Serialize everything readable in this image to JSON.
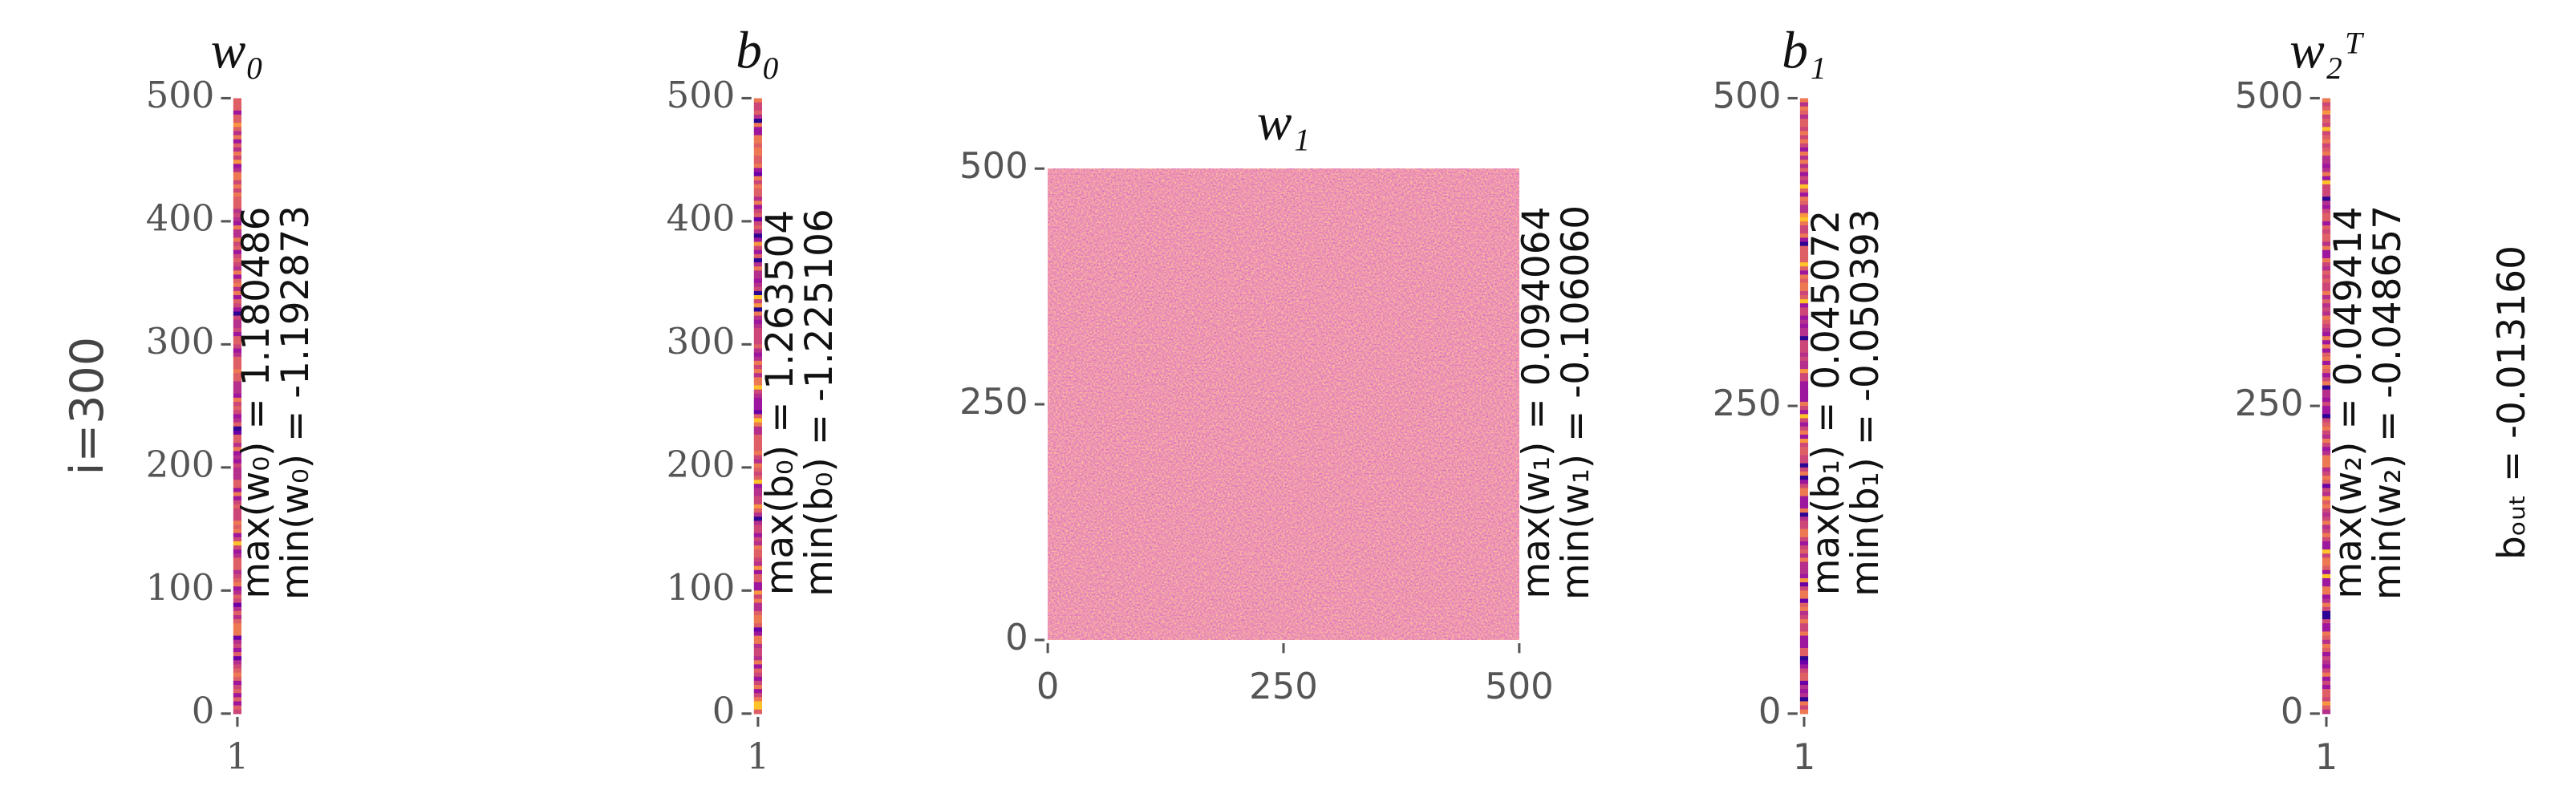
{
  "row_label": "i=300",
  "bias_label": "bₒᵤₜ = -0.013160",
  "chart_data": [
    {
      "type": "heatmap-bar",
      "title": "w₀",
      "ylim": [
        0,
        500
      ],
      "yticks": [
        0,
        100,
        200,
        300,
        400,
        500
      ],
      "categories": [
        "1"
      ],
      "tick_font": "serif",
      "annotations": [
        "max(w₀) = 1.180486",
        "min(w₀) = -1.192873"
      ]
    },
    {
      "type": "heatmap-bar",
      "title": "b₀",
      "ylim": [
        0,
        500
      ],
      "yticks": [
        0,
        100,
        200,
        300,
        400,
        500
      ],
      "categories": [
        "1"
      ],
      "tick_font": "serif",
      "annotations": [
        "max(b₀) = 1.263504",
        "min(b₀) = -1.225106"
      ]
    },
    {
      "type": "heatmap",
      "title": "w₁",
      "ylim": [
        0,
        500
      ],
      "yticks": [
        0,
        250,
        500
      ],
      "xlim": [
        0,
        500
      ],
      "xticks": [
        0,
        250,
        500
      ],
      "tick_font": "sans",
      "annotations": [
        "max(w₁) = 0.094064",
        "min(w₁) = -0.106060"
      ]
    },
    {
      "type": "heatmap-bar",
      "title": "b₁",
      "ylim": [
        0,
        500
      ],
      "yticks": [
        0,
        250,
        500
      ],
      "categories": [
        "1"
      ],
      "tick_font": "sans",
      "annotations": [
        "max(b₁) = 0.045072",
        "min(b₁) = -0.050393"
      ]
    },
    {
      "type": "heatmap-bar",
      "title": "w₂ᵀ",
      "ylim": [
        0,
        500
      ],
      "yticks": [
        0,
        250,
        500
      ],
      "categories": [
        "1"
      ],
      "tick_font": "sans",
      "annotations": [
        "max(w₂) = 0.049414",
        "min(w₂) = -0.048657"
      ]
    }
  ]
}
